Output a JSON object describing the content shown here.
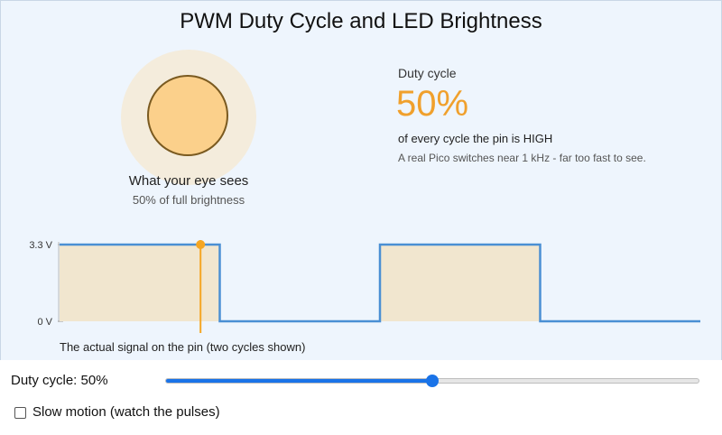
{
  "title": "PWM Duty Cycle and LED Brightness",
  "led": {
    "eye_label": "What your eye sees",
    "brightness_text": "50% of full brightness",
    "brightness": 0.5,
    "fill_color": "#fbd08b",
    "glow_color": "#f4ecdc"
  },
  "duty": {
    "label": "Duty cycle",
    "value_text": "50%",
    "description": "of every cycle the pin is HIGH",
    "note": "A real Pico switches near 1 kHz - far too fast to see.",
    "accent_color": "#f0a02c"
  },
  "signal": {
    "caption": "The actual signal on the pin (two cycles shown)",
    "high_label": "3.3 V",
    "low_label": "0 V",
    "duty_fraction": 0.5,
    "cycles": 2,
    "cursor_fraction": 0.22,
    "line_color": "#4a8fd4",
    "fill_color": "#f1e6cf",
    "cursor_color": "#f5a623"
  },
  "controls": {
    "slider_label": "Duty cycle: 50%",
    "slider_value": 50,
    "slider_max": 100,
    "slow_motion_label": "Slow motion (watch the pulses)",
    "slow_motion_checked": false,
    "slider_color": "#1a73e8"
  }
}
